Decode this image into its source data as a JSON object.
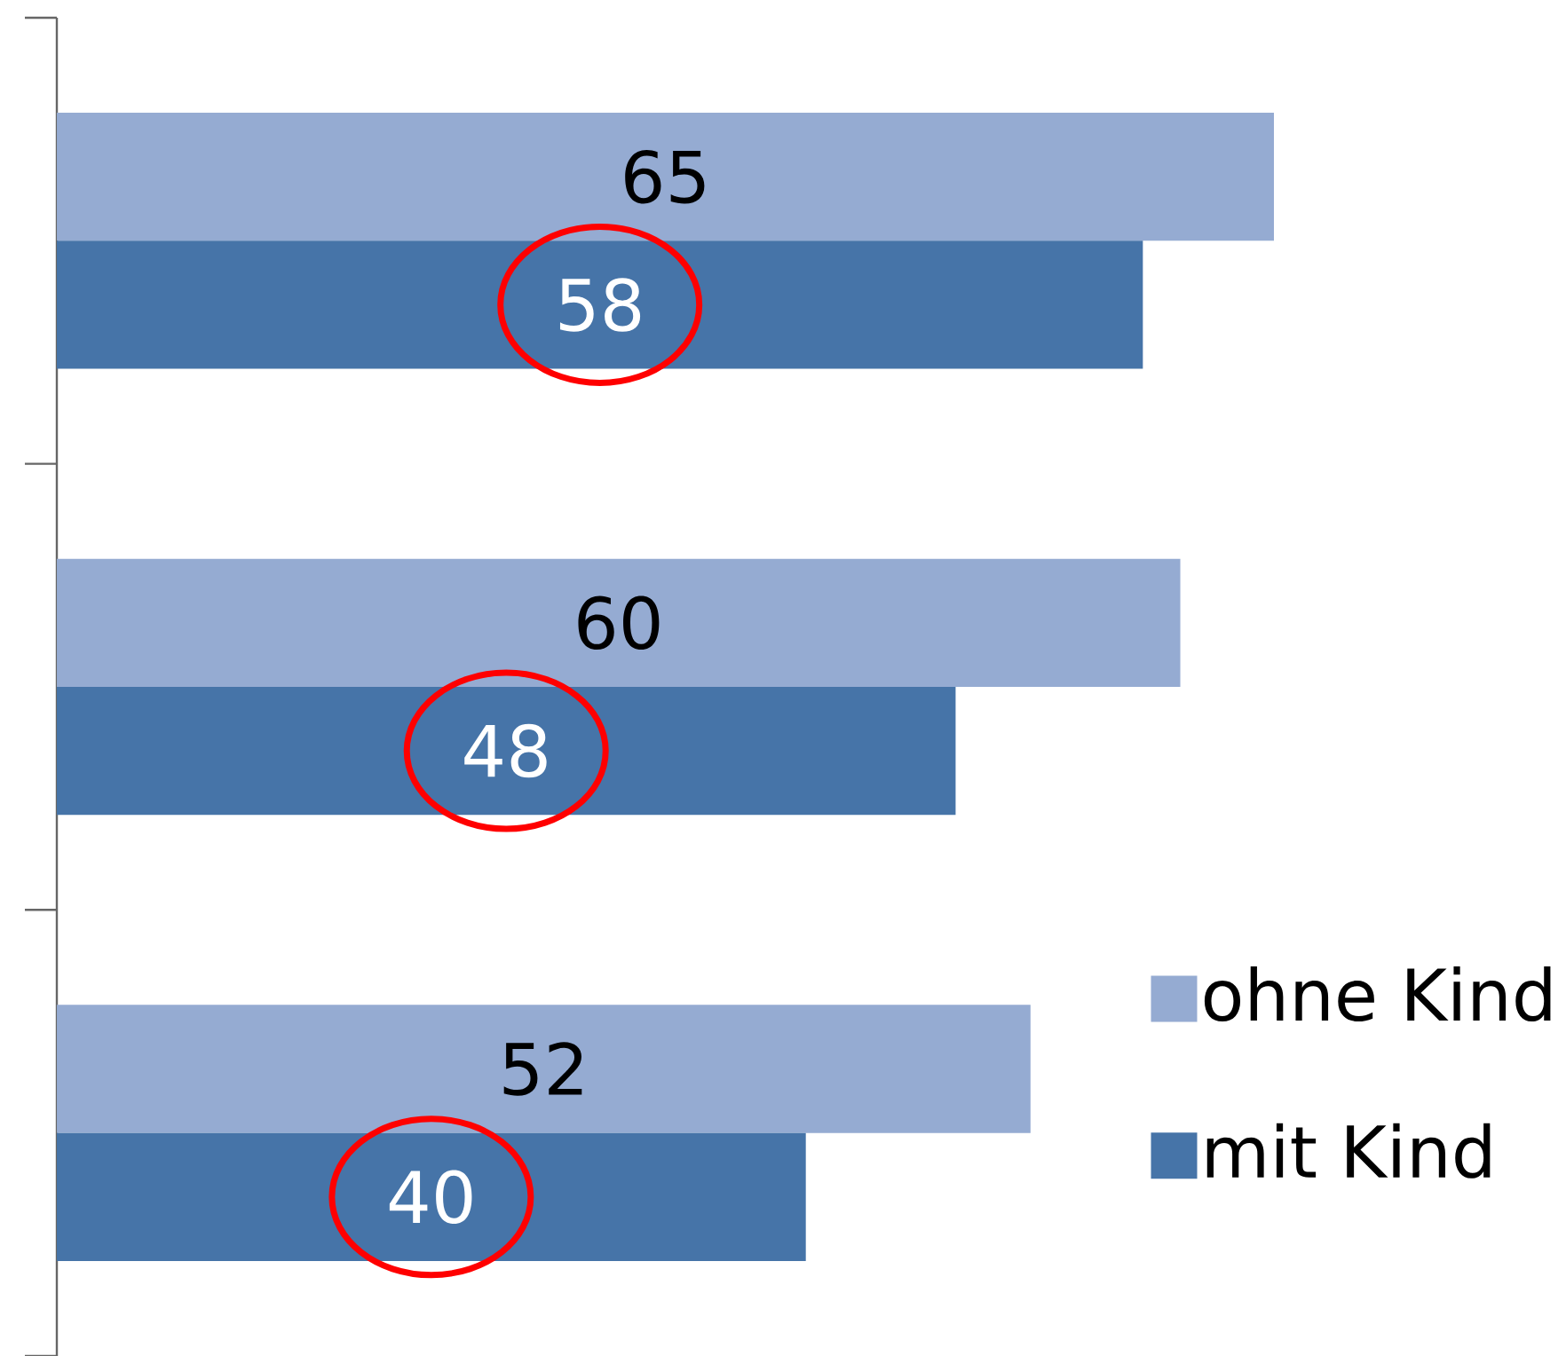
{
  "chart_data": {
    "type": "bar",
    "orientation": "horizontal",
    "relative": false,
    "data_labels": true,
    "legend": "bottom right",
    "categories": [
      null,
      null,
      null
    ],
    "series": [
      {
        "name": "ohne Kind",
        "color": "#95abd2",
        "values": [
          65,
          60,
          52
        ]
      },
      {
        "name": "mit Kind",
        "color": "#4674a8",
        "values": [
          58,
          48,
          40
        ]
      }
    ]
  }
}
